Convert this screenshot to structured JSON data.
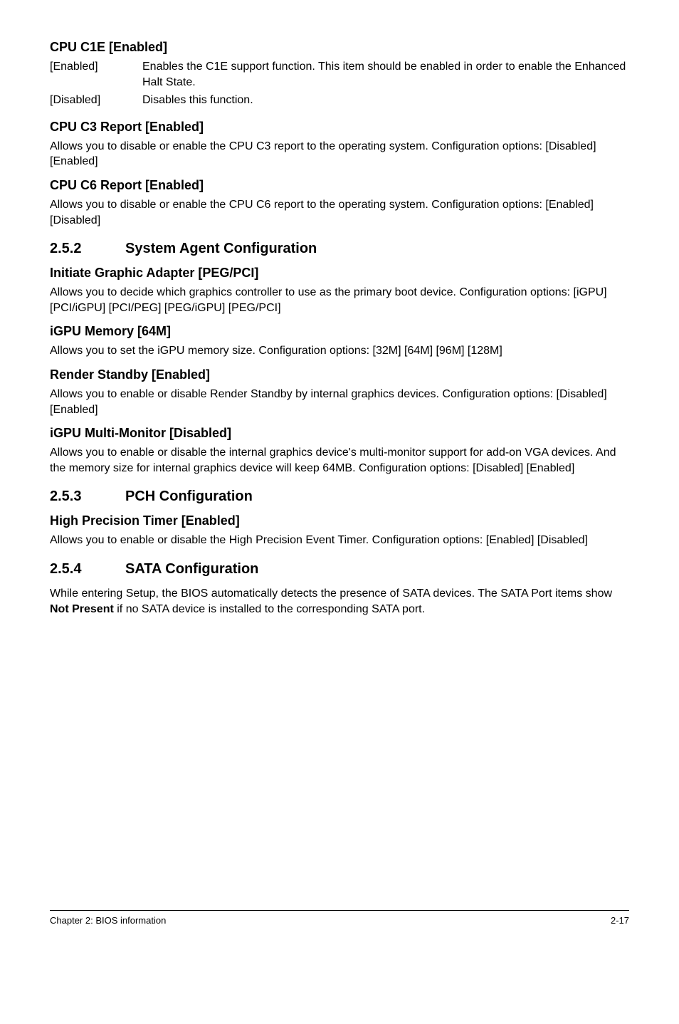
{
  "s1": {
    "title": "CPU C1E [Enabled]",
    "rows": [
      {
        "label": "[Enabled]",
        "text": "Enables the C1E support function. This item should be enabled in order to enable the Enhanced Halt State."
      },
      {
        "label": "[Disabled]",
        "text": "Disables this function."
      }
    ]
  },
  "s2": {
    "title": "CPU C3 Report [Enabled]",
    "para": "Allows you to disable or enable the CPU C3 report to the operating system. Configuration options: [Disabled] [Enabled]"
  },
  "s3": {
    "title": "CPU C6 Report [Enabled]",
    "para": "Allows you to disable or enable the CPU C6 report to the operating system. Configuration options: [Enabled] [Disabled]"
  },
  "sec252": {
    "num": "2.5.2",
    "title": "System Agent Configuration"
  },
  "s4": {
    "title": "Initiate Graphic Adapter [PEG/PCI]",
    "para": "Allows you to decide which graphics controller to use as the primary boot device. Configuration options: [iGPU] [PCI/iGPU] [PCI/PEG] [PEG/iGPU] [PEG/PCI]"
  },
  "s5": {
    "title": "iGPU Memory [64M]",
    "para": "Allows you to set the iGPU memory size. Configuration options: [32M] [64M] [96M] [128M]"
  },
  "s6": {
    "title": "Render Standby [Enabled]",
    "para": "Allows you to enable or disable Render Standby by internal graphics devices. Configuration options: [Disabled] [Enabled]"
  },
  "s7": {
    "title": "iGPU Multi-Monitor [Disabled]",
    "para": "Allows you to enable or disable the internal graphics device's multi-monitor support for add-on VGA devices. And the memory size for internal graphics device will keep 64MB. Configuration options: [Disabled] [Enabled]"
  },
  "sec253": {
    "num": "2.5.3",
    "title": "PCH Configuration"
  },
  "s8": {
    "title": "High Precision Timer [Enabled]",
    "para": "Allows you to enable or disable the High Precision Event Timer. Configuration options: [Enabled] [Disabled]"
  },
  "sec254": {
    "num": "2.5.4",
    "title": "SATA Configuration"
  },
  "s9": {
    "para_pre": "While entering Setup, the BIOS automatically detects the presence of SATA devices. The SATA Port items show ",
    "bold": "Not Present",
    "para_post": " if no SATA device is installed to the corresponding SATA port."
  },
  "footer": {
    "left": "Chapter 2: BIOS information",
    "right": "2-17"
  }
}
